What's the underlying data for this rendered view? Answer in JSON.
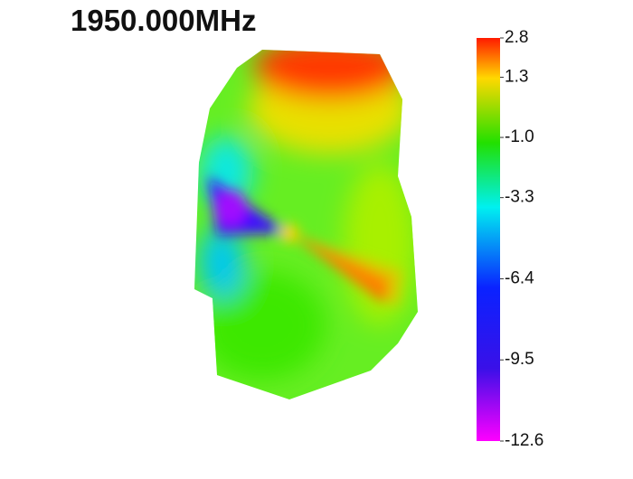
{
  "title": "1950.000MHz",
  "colorbar": {
    "lim": [
      -12.6,
      2.8
    ],
    "ticks": [
      2.8,
      1.3,
      {
        "value": -1.0,
        "label": "-1.0"
      },
      -3.3,
      -6.4,
      -9.5,
      -12.6
    ]
  }
}
